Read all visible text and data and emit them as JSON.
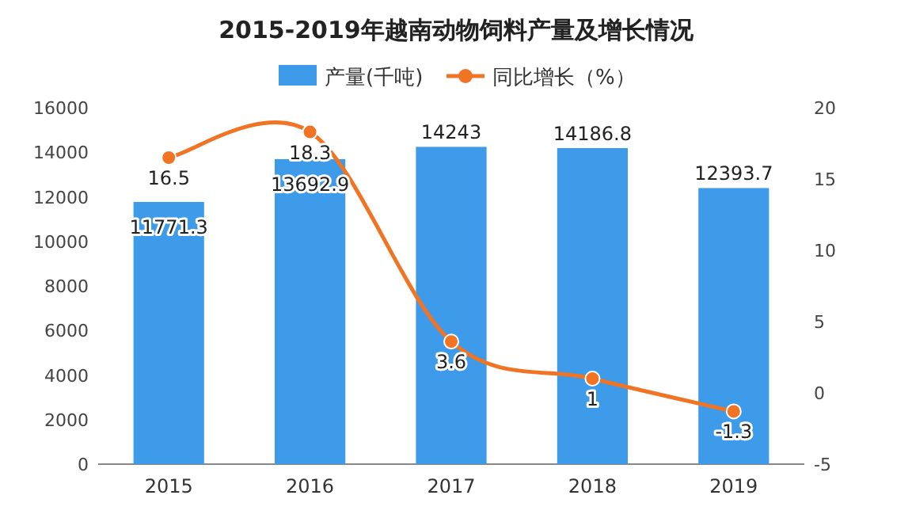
{
  "chart_data": {
    "type": "bar",
    "title": "2015-2019年越南动物饲料产量及增长情况",
    "categories": [
      "2015",
      "2016",
      "2017",
      "2018",
      "2019"
    ],
    "series": [
      {
        "name": "产量(千吨)",
        "type": "bar",
        "color": "#3d9be9",
        "values": [
          11771.3,
          13692.9,
          14243,
          14186.8,
          12393.7
        ]
      },
      {
        "name": "同比增长（%）",
        "type": "line",
        "axis": "y2",
        "color": "#f07424",
        "marker": "circle",
        "values": [
          16.5,
          18.3,
          3.6,
          1,
          -1.3
        ]
      }
    ],
    "ylim": [
      0,
      16000
    ],
    "yticks": [
      0,
      2000,
      4000,
      6000,
      8000,
      10000,
      12000,
      14000,
      16000
    ],
    "y2lim": [
      -5,
      20
    ],
    "y2ticks": [
      -5,
      0,
      5,
      10,
      15,
      20
    ],
    "data_labels": true,
    "legend": "top",
    "grid": false
  }
}
